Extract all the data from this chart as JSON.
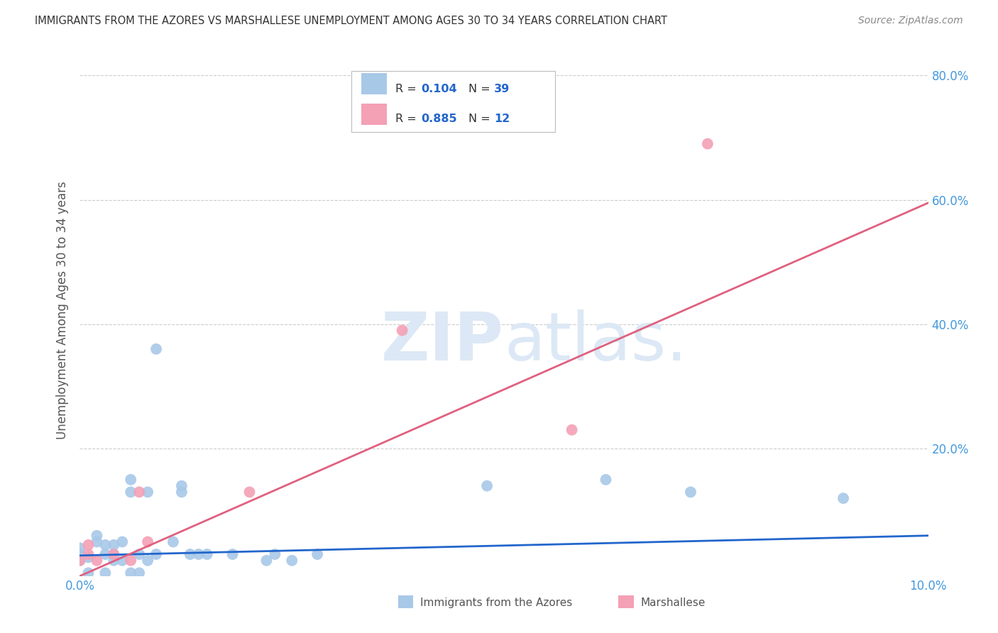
{
  "title": "IMMIGRANTS FROM THE AZORES VS MARSHALLESE UNEMPLOYMENT AMONG AGES 30 TO 34 YEARS CORRELATION CHART",
  "source": "Source: ZipAtlas.com",
  "ylabel": "Unemployment Among Ages 30 to 34 years",
  "xlim": [
    0.0,
    0.1
  ],
  "ylim": [
    -0.005,
    0.85
  ],
  "azores_R": "0.104",
  "azores_N": "39",
  "marshallese_R": "0.885",
  "marshallese_N": "12",
  "azores_color": "#a8c8e8",
  "marshallese_color": "#f4a0b5",
  "trendline_azores_color": "#2266cc",
  "trendline_marshallese_color": "#e06080",
  "watermark_color": "#dce8f5",
  "background_color": "#ffffff",
  "grid_color": "#cccccc",
  "title_color": "#333333",
  "axis_color": "#4499dd",
  "azores_points": [
    [
      0.0,
      0.02
    ],
    [
      0.0,
      0.03
    ],
    [
      0.0,
      0.04
    ],
    [
      0.001,
      0.0
    ],
    [
      0.001,
      0.025
    ],
    [
      0.002,
      0.05
    ],
    [
      0.002,
      0.06
    ],
    [
      0.003,
      0.0
    ],
    [
      0.003,
      0.03
    ],
    [
      0.003,
      0.045
    ],
    [
      0.004,
      0.02
    ],
    [
      0.004,
      0.03
    ],
    [
      0.004,
      0.045
    ],
    [
      0.005,
      0.02
    ],
    [
      0.005,
      0.05
    ],
    [
      0.006,
      0.0
    ],
    [
      0.006,
      0.13
    ],
    [
      0.006,
      0.15
    ],
    [
      0.007,
      0.0
    ],
    [
      0.007,
      0.03
    ],
    [
      0.008,
      0.02
    ],
    [
      0.008,
      0.13
    ],
    [
      0.009,
      0.03
    ],
    [
      0.009,
      0.36
    ],
    [
      0.011,
      0.05
    ],
    [
      0.012,
      0.13
    ],
    [
      0.012,
      0.14
    ],
    [
      0.013,
      0.03
    ],
    [
      0.014,
      0.03
    ],
    [
      0.015,
      0.03
    ],
    [
      0.018,
      0.03
    ],
    [
      0.022,
      0.02
    ],
    [
      0.023,
      0.03
    ],
    [
      0.025,
      0.02
    ],
    [
      0.028,
      0.03
    ],
    [
      0.048,
      0.14
    ],
    [
      0.062,
      0.15
    ],
    [
      0.072,
      0.13
    ],
    [
      0.09,
      0.12
    ]
  ],
  "marshallese_points": [
    [
      0.0,
      0.02
    ],
    [
      0.001,
      0.03
    ],
    [
      0.001,
      0.045
    ],
    [
      0.002,
      0.02
    ],
    [
      0.004,
      0.03
    ],
    [
      0.006,
      0.02
    ],
    [
      0.007,
      0.13
    ],
    [
      0.008,
      0.05
    ],
    [
      0.02,
      0.13
    ],
    [
      0.038,
      0.39
    ],
    [
      0.058,
      0.23
    ],
    [
      0.074,
      0.69
    ]
  ],
  "azores_trendline_x": [
    0.0,
    0.1
  ],
  "azores_trendline_y": [
    0.028,
    0.06
  ],
  "marshallese_trendline_x": [
    0.0,
    0.1
  ],
  "marshallese_trendline_y": [
    -0.005,
    0.595
  ],
  "ytick_positions": [
    0.0,
    0.2,
    0.4,
    0.6,
    0.8
  ],
  "ytick_labels": [
    "",
    "20.0%",
    "40.0%",
    "60.0%",
    "80.0%"
  ],
  "xtick_positions": [
    0.0,
    0.02,
    0.04,
    0.06,
    0.08,
    0.1
  ],
  "xtick_labels": [
    "0.0%",
    "",
    "",
    "",
    "",
    "10.0%"
  ]
}
